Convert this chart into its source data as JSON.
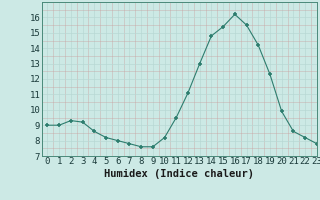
{
  "x": [
    0,
    1,
    2,
    3,
    4,
    5,
    6,
    7,
    8,
    9,
    10,
    11,
    12,
    13,
    14,
    15,
    16,
    17,
    18,
    19,
    20,
    21,
    22,
    23
  ],
  "y": [
    9.0,
    9.0,
    9.3,
    9.2,
    8.6,
    8.2,
    8.0,
    7.8,
    7.6,
    7.6,
    8.2,
    9.5,
    11.1,
    13.0,
    14.8,
    15.4,
    16.2,
    15.5,
    14.2,
    12.3,
    9.9,
    8.6,
    8.2,
    7.8
  ],
  "xlabel": "Humidex (Indice chaleur)",
  "ylim": [
    7,
    17
  ],
  "xlim": [
    -0.5,
    23
  ],
  "yticks": [
    7,
    8,
    9,
    10,
    11,
    12,
    13,
    14,
    15,
    16
  ],
  "xticks": [
    0,
    1,
    2,
    3,
    4,
    5,
    6,
    7,
    8,
    9,
    10,
    11,
    12,
    13,
    14,
    15,
    16,
    17,
    18,
    19,
    20,
    21,
    22,
    23
  ],
  "line_color": "#2d7d6e",
  "marker_color": "#2d7d6e",
  "bg_color": "#cce9e5",
  "grid_major_color": "#b8d8d4",
  "grid_minor_color": "#cce3df",
  "tick_color": "#2d7d6e",
  "label_fontsize": 6.5,
  "xlabel_fontsize": 7.5
}
